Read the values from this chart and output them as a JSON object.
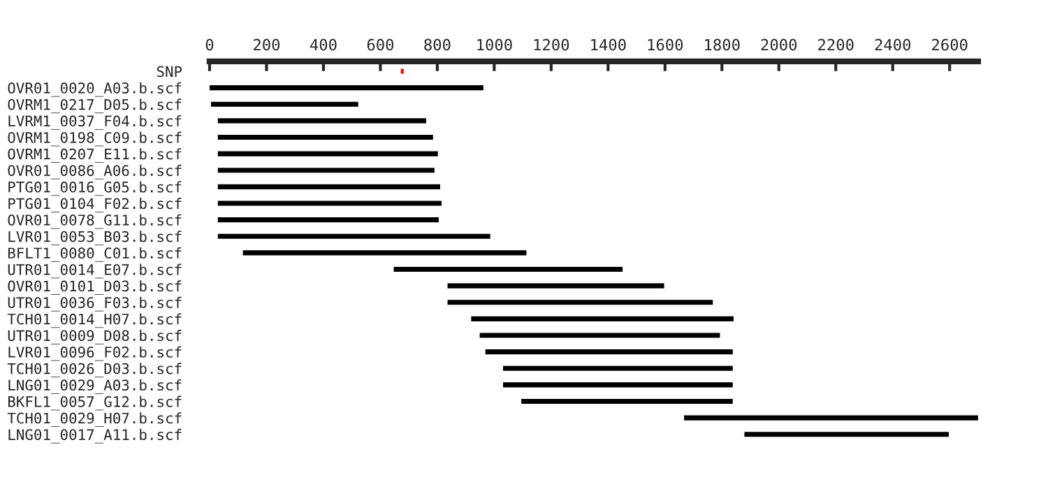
{
  "chart_data": {
    "type": "bar",
    "orientation": "horizontal",
    "categories": [
      "SNP",
      "OVR01_0020_A03.b.scf",
      "OVRM1_0217_D05.b.scf",
      "LVRM1_0037_F04.b.scf",
      "OVRM1_0198_C09.b.scf",
      "OVRM1_0207_E11.b.scf",
      "OVR01_0086_A06.b.scf",
      "PTG01_0016_G05.b.scf",
      "PTG01_0104_F02.b.scf",
      "OVR01_0078_G11.b.scf",
      "LVR01_0053_B03.b.scf",
      "BFLT1_0080_C01.b.scf",
      "UTR01_0014_E07.b.scf",
      "OVR01_0101_D03.b.scf",
      "UTR01_0036_F03.b.scf",
      "TCH01_0014_H07.b.scf",
      "UTR01_0009_D08.b.scf",
      "LVR01_0096_F02.b.scf",
      "TCH01_0026_D03.b.scf",
      "LNG01_0029_A03.b.scf",
      "BKFL1_0057_G12.b.scf",
      "TCH01_0029_H07.b.scf",
      "LNG01_0017_A11.b.scf"
    ],
    "base": [
      672,
      0,
      5,
      29,
      29,
      29,
      29,
      29,
      29,
      29,
      29,
      117,
      647,
      836,
      836,
      919,
      949,
      969,
      1031,
      1031,
      1095,
      1667,
      1879
    ],
    "values": [
      10,
      962,
      517,
      732,
      756,
      773,
      761,
      781,
      786,
      776,
      957,
      996,
      804,
      761,
      932,
      922,
      844,
      869,
      807,
      807,
      743,
      1033,
      718
    ],
    "colors": [
      "#ff0000",
      "#000000",
      "#000000",
      "#000000",
      "#000000",
      "#000000",
      "#000000",
      "#000000",
      "#000000",
      "#000000",
      "#000000",
      "#000000",
      "#000000",
      "#000000",
      "#000000",
      "#000000",
      "#000000",
      "#000000",
      "#000000",
      "#000000",
      "#000000",
      "#000000",
      "#000000"
    ],
    "xlim": [
      0,
      2700
    ],
    "xticks": [
      0,
      200,
      400,
      600,
      800,
      1000,
      1200,
      1400,
      1600,
      1800,
      2000,
      2200,
      2400,
      2600
    ],
    "grid": false
  }
}
